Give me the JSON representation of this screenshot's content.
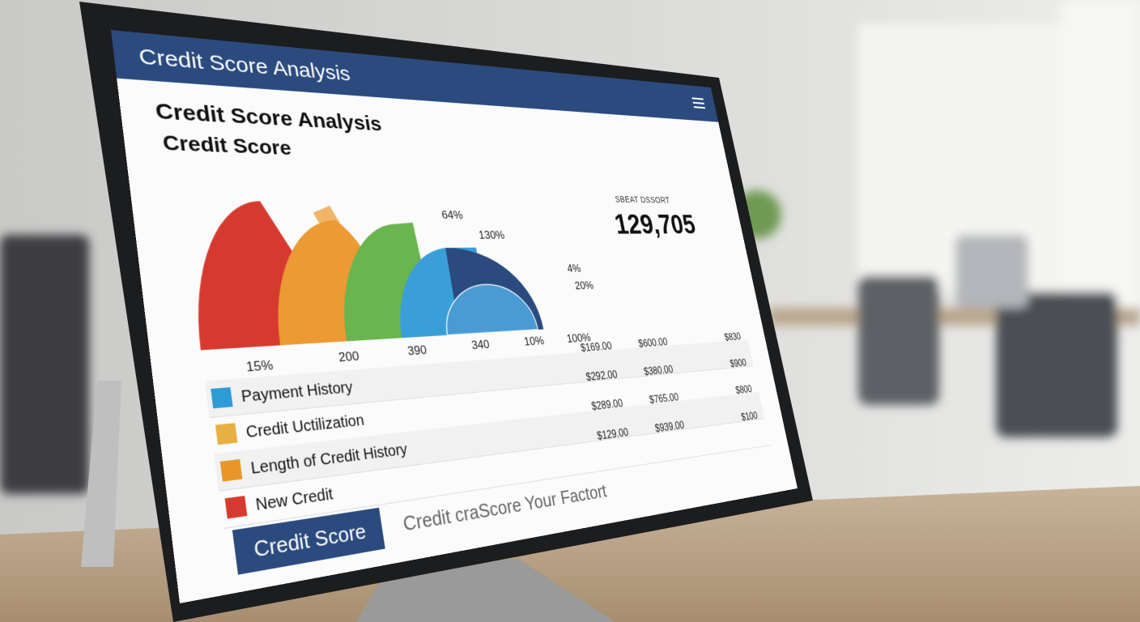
{
  "header": {
    "title": "Credit Score Analysis"
  },
  "content": {
    "title": "Credit Score Analysis",
    "subtitle": "Credit Score"
  },
  "chart": {
    "top_labels": [
      "64%",
      "130%",
      "4%",
      "20%"
    ],
    "bottom_labels": [
      "15%",
      "200",
      "390",
      "340",
      "10%",
      "100%"
    ]
  },
  "stat": {
    "label": "SBEAT DSSORT",
    "value": "129,705"
  },
  "table": {
    "rows": [
      {
        "name": "Payment History",
        "amounts": [
          "$169.00",
          "$600.00",
          "$830"
        ]
      },
      {
        "name": "Credit Uctilization",
        "amounts": [
          "$292.00",
          "$380.00",
          "$900"
        ]
      },
      {
        "name": "Length of Credit History",
        "amounts": [
          "$289.00",
          "$765.00",
          "$800"
        ]
      },
      {
        "name": "New Credit",
        "amounts": [
          "$129.00",
          "$939.00",
          "$100"
        ]
      }
    ]
  },
  "footer": {
    "button": "Credit Score",
    "caption": "Credit craScore Your Factort"
  }
}
